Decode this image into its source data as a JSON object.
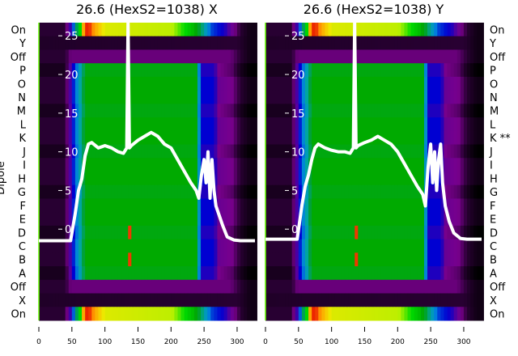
{
  "chart_data": [
    {
      "type": "heatmap",
      "title": "26.6 (HexS2=1038) X",
      "ylabel": "Dipole",
      "row_labels": [
        "On",
        "Y",
        "Off",
        "P",
        "O",
        "N",
        "M",
        "L",
        "K",
        "J",
        "I",
        "H",
        "G",
        "F",
        "E",
        "D",
        "C",
        "B",
        "A",
        "Off",
        "X",
        "On"
      ],
      "row_kinds": [
        "on",
        "xy",
        "off",
        "d",
        "d",
        "d",
        "d",
        "d",
        "d",
        "d",
        "d",
        "d",
        "d",
        "d",
        "d",
        "d",
        "d",
        "d",
        "d",
        "off",
        "xy",
        "on"
      ],
      "xticks": [
        0,
        50,
        100,
        150,
        200,
        250,
        300
      ],
      "xlim": [
        0,
        327
      ],
      "yticks": [
        0,
        5,
        10,
        15,
        20,
        25
      ],
      "ylim": [
        -11.8,
        26.7
      ],
      "line": {
        "x": [
          0,
          10,
          20,
          30,
          40,
          48,
          55,
          60,
          65,
          70,
          75,
          80,
          90,
          100,
          110,
          120,
          128,
          133,
          135,
          137,
          140,
          150,
          160,
          170,
          180,
          190,
          200,
          210,
          220,
          230,
          238,
          242,
          246,
          250,
          253,
          256,
          259,
          262,
          265,
          268,
          272,
          278,
          285,
          295,
          305,
          315,
          327
        ],
        "y": [
          -1.5,
          -1.5,
          -1.5,
          -1.5,
          -1.5,
          -1.5,
          2,
          5,
          6.5,
          9.5,
          11,
          11.2,
          10.5,
          10.8,
          10.5,
          10,
          9.8,
          10.5,
          28,
          10.5,
          10.8,
          11.5,
          12,
          12.5,
          12,
          11,
          10.5,
          9,
          7.5,
          6,
          5,
          4,
          7,
          9,
          6,
          10,
          4,
          9,
          5,
          3,
          2,
          0.5,
          -1,
          -1.4,
          -1.5,
          -1.5,
          -1.5
        ]
      }
    },
    {
      "type": "heatmap",
      "title": "26.6 (HexS2=1038) Y",
      "ylabel": "",
      "row_labels": [
        "On",
        "Y",
        "Off",
        "P",
        "O",
        "N",
        "M",
        "L",
        "K **",
        "J",
        "I",
        "H",
        "G",
        "F",
        "E",
        "D",
        "C",
        "B",
        "A",
        "Off",
        "X",
        "On"
      ],
      "row_kinds": [
        "on",
        "xy",
        "off",
        "d",
        "d",
        "d",
        "d",
        "d",
        "d",
        "d",
        "d",
        "d",
        "d",
        "d",
        "d",
        "d",
        "d",
        "d",
        "d",
        "off",
        "xy",
        "on"
      ],
      "xticks": [
        0,
        50,
        100,
        150,
        200,
        250,
        300
      ],
      "xlim": [
        0,
        327
      ],
      "yticks": [
        0,
        5,
        10,
        15,
        20,
        25
      ],
      "ylim": [
        -11.8,
        26.7
      ],
      "line": {
        "x": [
          0,
          10,
          20,
          30,
          40,
          48,
          55,
          60,
          65,
          70,
          75,
          80,
          90,
          100,
          110,
          120,
          128,
          133,
          135,
          137,
          140,
          150,
          160,
          170,
          180,
          190,
          200,
          210,
          220,
          230,
          238,
          242,
          246,
          250,
          253,
          256,
          259,
          262,
          265,
          268,
          272,
          278,
          285,
          295,
          305,
          315,
          327
        ],
        "y": [
          -1.3,
          -1.3,
          -1.3,
          -1.3,
          -1.3,
          -1.3,
          3,
          5.5,
          7,
          9,
          10.5,
          11,
          10.5,
          10.2,
          10,
          10,
          9.8,
          10.5,
          28,
          10.5,
          10.8,
          11.2,
          11.5,
          12,
          11.5,
          11,
          10,
          8.5,
          7,
          5.5,
          4.5,
          3,
          8,
          11,
          6,
          10,
          5,
          9,
          11,
          6,
          3,
          1,
          -0.5,
          -1.2,
          -1.3,
          -1.3,
          -1.3
        ]
      }
    }
  ]
}
